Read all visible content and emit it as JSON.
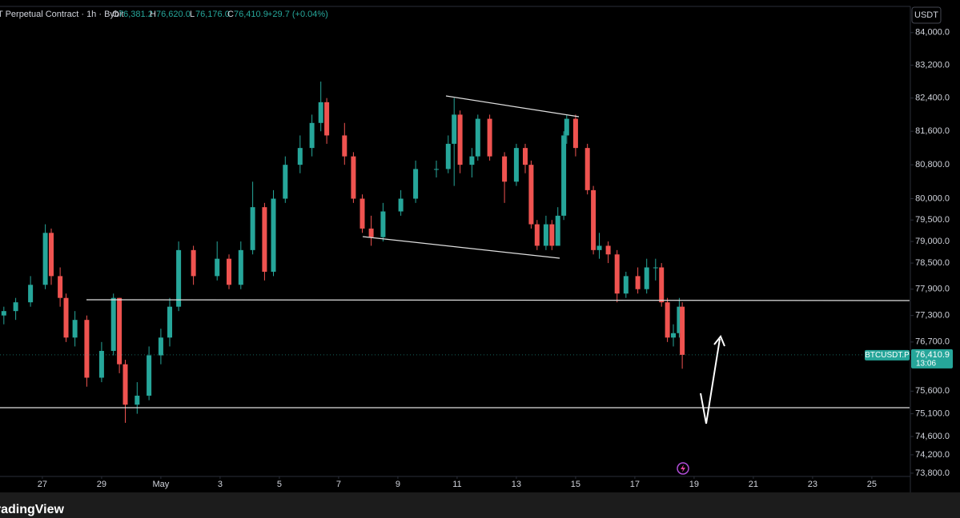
{
  "header": {
    "symbol": "T Perpetual Contract · 1h · Bybit",
    "open_label": "O",
    "open": "76,381.2",
    "high_label": "H",
    "high": "76,620.0",
    "low_label": "L",
    "low": "76,176.0",
    "close_label": "C",
    "close": "76,410.9",
    "change": "+29.7 (+0.04%)"
  },
  "currency_button": "USDT",
  "footer_logo": "TradingView",
  "chart_data": {
    "type": "candlestick",
    "log_scale": true,
    "up_color": "#26a69a",
    "down_color": "#ef5350",
    "symbol_label": "BTCUSDT.P",
    "last_price": {
      "value": 76410.9,
      "label": "76,410.9"
    },
    "countdown": "13:06",
    "xlim": [
      25.57,
      56.3
    ],
    "xticks": [
      {
        "value": 27,
        "label": "27"
      },
      {
        "value": 29,
        "label": "29"
      },
      {
        "value": 31,
        "label": "May"
      },
      {
        "value": 33,
        "label": "3"
      },
      {
        "value": 35,
        "label": "5"
      },
      {
        "value": 37,
        "label": "7"
      },
      {
        "value": 39,
        "label": "9"
      },
      {
        "value": 41,
        "label": "11"
      },
      {
        "value": 43,
        "label": "13"
      },
      {
        "value": 45,
        "label": "15"
      },
      {
        "value": 47,
        "label": "17"
      },
      {
        "value": 49,
        "label": "19"
      },
      {
        "value": 51,
        "label": "21"
      },
      {
        "value": 53,
        "label": "23"
      },
      {
        "value": 55,
        "label": "25"
      }
    ],
    "ylim": [
      73660,
      84650
    ],
    "yticks": [
      {
        "value": 84000,
        "label": "84,000.0"
      },
      {
        "value": 83200,
        "label": "83,200.0"
      },
      {
        "value": 82400,
        "label": "82,400.0"
      },
      {
        "value": 81600,
        "label": "81,600.0"
      },
      {
        "value": 80800,
        "label": "80,800.0"
      },
      {
        "value": 80000,
        "label": "80,000.0"
      },
      {
        "value": 79500,
        "label": "79,500.0"
      },
      {
        "value": 79000,
        "label": "79,000.0"
      },
      {
        "value": 78500,
        "label": "78,500.0"
      },
      {
        "value": 77900,
        "label": "77,900.0"
      },
      {
        "value": 77300,
        "label": "77,300.0"
      },
      {
        "value": 76700,
        "label": "76,700.0"
      },
      {
        "value": 75600,
        "label": "75,600.0"
      },
      {
        "value": 75100,
        "label": "75,100.0"
      },
      {
        "value": 74600,
        "label": "74,600.0"
      },
      {
        "value": 74200,
        "label": "74,200.0"
      },
      {
        "value": 73800,
        "label": "73,800.0"
      }
    ],
    "x": [
      25.7,
      26.1,
      26.6,
      27.1,
      27.3,
      27.6,
      27.8,
      28.1,
      28.5,
      29.0,
      29.4,
      29.6,
      29.8,
      30.2,
      30.6,
      31.0,
      31.3,
      31.6,
      32.1,
      32.9,
      33.3,
      33.7,
      34.1,
      34.5,
      34.8,
      35.2,
      35.7,
      36.1,
      36.4,
      36.6,
      37.2,
      37.5,
      37.8,
      38.1,
      38.5,
      39.1,
      39.6,
      40.3,
      40.7,
      40.9,
      41.1,
      41.5,
      41.7,
      42.1,
      42.6,
      43.0,
      43.3,
      43.5,
      43.7,
      44.0,
      44.2,
      44.4,
      44.6,
      44.7,
      45.0,
      45.4,
      45.6,
      45.8,
      46.1,
      46.4,
      46.7,
      47.1,
      47.4,
      47.7,
      47.9,
      48.1,
      48.3,
      48.5,
      48.6
    ],
    "open": [
      77300,
      77400,
      77600,
      78000,
      79200,
      78200,
      77700,
      76800,
      77200,
      75900,
      76500,
      77700,
      76200,
      75300,
      75500,
      76400,
      76800,
      77500,
      78800,
      78200,
      78600,
      78000,
      78800,
      79800,
      78300,
      80000,
      80800,
      81200,
      81800,
      82300,
      81500,
      81000,
      80000,
      79300,
      79100,
      79700,
      80000,
      80700,
      80700,
      81300,
      82000,
      80800,
      81000,
      81900,
      81000,
      80400,
      81200,
      80800,
      79400,
      78900,
      79400,
      78900,
      79600,
      81500,
      81900,
      81200,
      80200,
      78800,
      78900,
      78700,
      77800,
      78200,
      77900,
      78400,
      78400,
      77600,
      76800,
      76900,
      77500
    ],
    "high": [
      77500,
      77700,
      78200,
      79400,
      79300,
      78400,
      77800,
      77400,
      77300,
      76700,
      77800,
      77700,
      76300,
      75800,
      76600,
      77000,
      77700,
      79000,
      78900,
      79000,
      78700,
      79000,
      80400,
      79900,
      80200,
      81000,
      81500,
      82000,
      82800,
      82400,
      81800,
      81100,
      80100,
      79600,
      79900,
      80200,
      80900,
      80900,
      81500,
      82400,
      82100,
      81200,
      82000,
      82000,
      81100,
      81300,
      81300,
      80900,
      79500,
      79600,
      79500,
      79800,
      81600,
      82000,
      82000,
      81300,
      80300,
      79200,
      79000,
      78800,
      78300,
      78400,
      78600,
      78600,
      78500,
      77700,
      77100,
      77700,
      77600
    ],
    "low": [
      77100,
      77200,
      77500,
      77900,
      78000,
      77500,
      76700,
      76600,
      75700,
      75800,
      76400,
      76000,
      74900,
      75100,
      75400,
      76200,
      76600,
      77400,
      78000,
      78100,
      77900,
      77900,
      78700,
      78100,
      78200,
      79900,
      80600,
      81000,
      81600,
      81300,
      80800,
      79900,
      79200,
      78900,
      79000,
      79600,
      79900,
      80500,
      80600,
      80300,
      80600,
      80500,
      80900,
      80900,
      79900,
      80300,
      80600,
      79300,
      78800,
      78800,
      78800,
      78900,
      79500,
      81300,
      81000,
      80100,
      78700,
      78600,
      78500,
      77600,
      77700,
      77800,
      77800,
      78100,
      77500,
      76700,
      76600,
      76800,
      76100
    ],
    "close": [
      77400,
      77600,
      78000,
      79200,
      78200,
      77700,
      76800,
      77200,
      75900,
      76500,
      77700,
      76200,
      75300,
      75500,
      76400,
      76800,
      77500,
      78800,
      78200,
      78600,
      78000,
      78800,
      79800,
      78300,
      80000,
      80800,
      81200,
      81800,
      82300,
      81500,
      81000,
      80000,
      79300,
      79100,
      79700,
      80000,
      80700,
      80700,
      81300,
      82000,
      80800,
      81000,
      81900,
      81000,
      80400,
      81200,
      80800,
      79400,
      78900,
      79400,
      78900,
      79600,
      81500,
      81900,
      81200,
      80200,
      78800,
      78900,
      78700,
      77800,
      78200,
      77900,
      78400,
      78400,
      77600,
      76800,
      76900,
      77500,
      76410.9
    ]
  }
}
